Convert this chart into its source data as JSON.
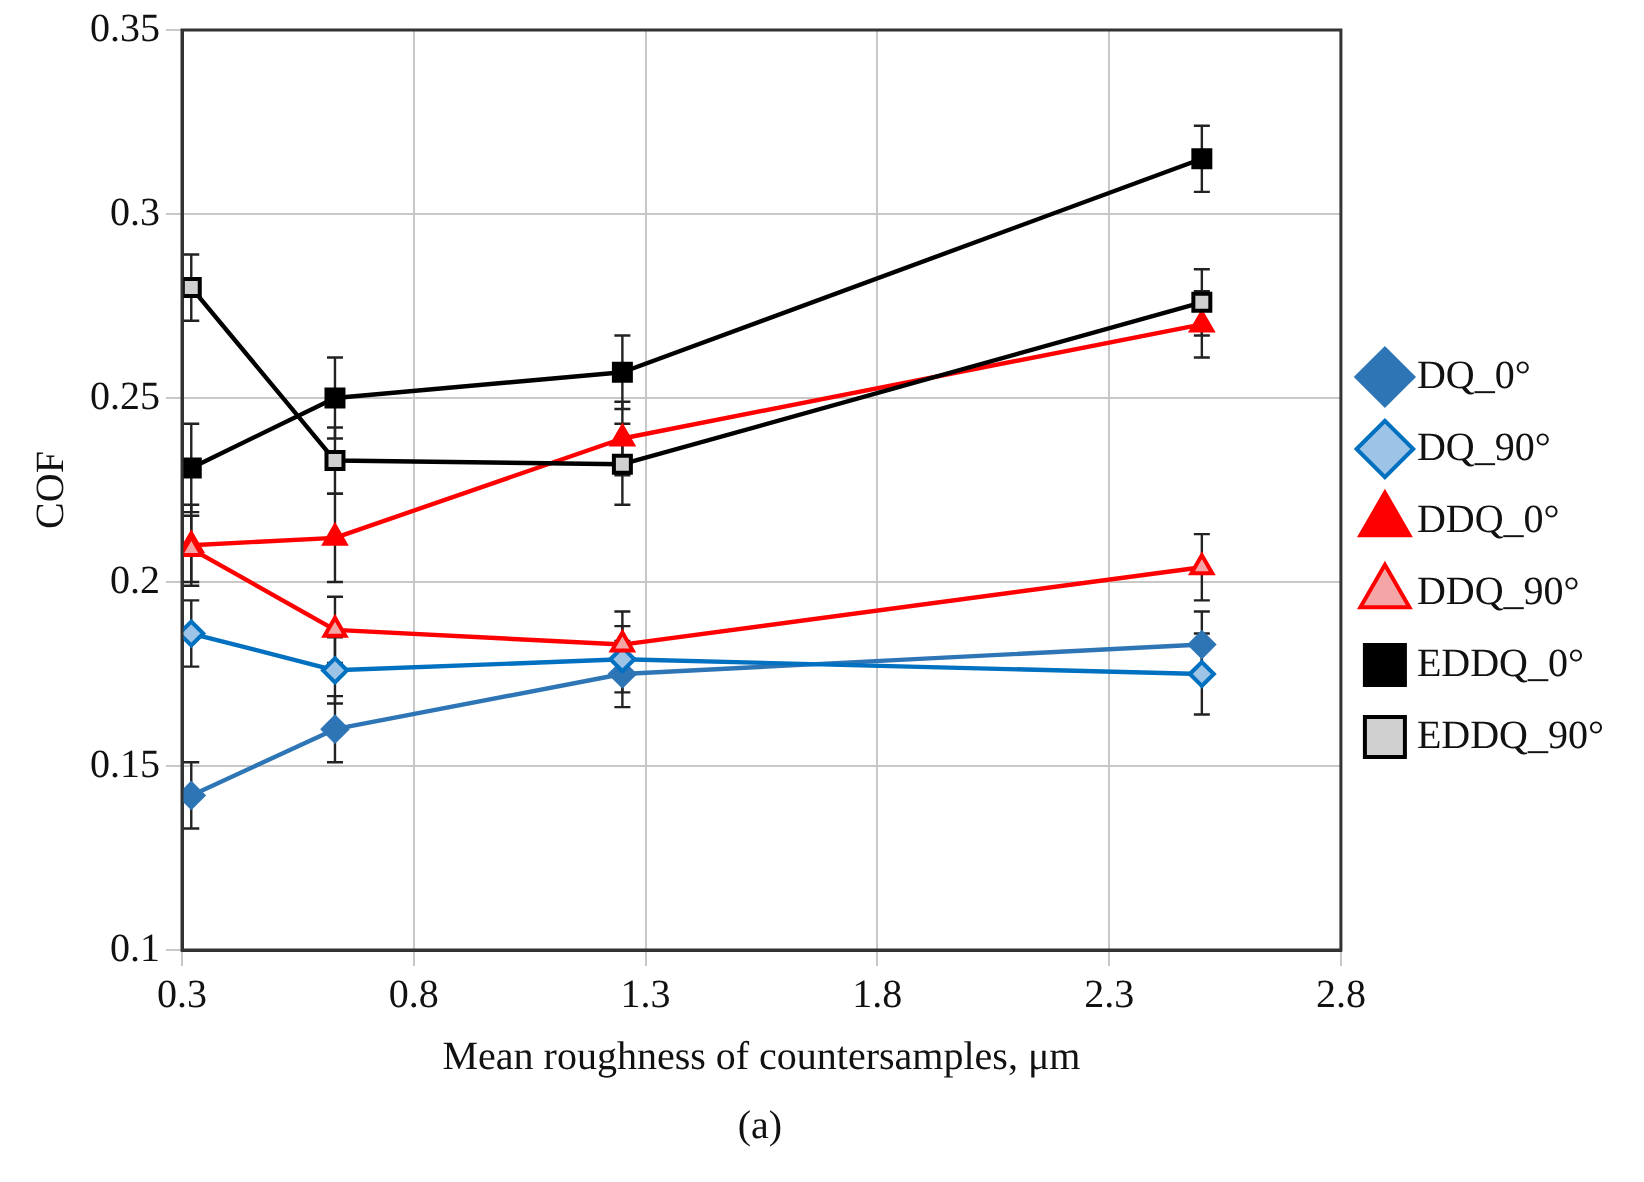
{
  "chart_data": {
    "type": "line",
    "xlabel": "Mean roughness of countersamples, μm",
    "ylabel": "COF",
    "x": [
      0.32,
      0.63,
      1.25,
      2.5
    ],
    "xlim": [
      0.3,
      2.8
    ],
    "xticks": [
      0.3,
      0.8,
      1.3,
      1.8,
      2.3,
      2.8
    ],
    "ylim": [
      0.1,
      0.35
    ],
    "yticks": [
      {
        "value": 0.1,
        "label": "0.1"
      },
      0.15,
      {
        "value": 0.2,
        "label": "0.2"
      },
      0.25,
      {
        "value": 0.3,
        "label": "0.3"
      },
      0.35
    ],
    "grid": true,
    "legend": "right",
    "annotations": [
      "(a)"
    ],
    "series": [
      {
        "name": "DQ_0°",
        "color": "#2e75b6",
        "marker": "diamond",
        "colors": [
          "#2e75b6",
          "#2e75b6",
          "#2e75b6",
          "#2e75b6"
        ],
        "values": [
          0.142,
          0.16,
          0.175,
          0.183
        ],
        "errors": [
          0.009,
          0.009,
          0.009,
          0.009
        ]
      },
      {
        "name": "DQ_90°",
        "color": "#0070c0",
        "marker": "diamond",
        "colors": [
          "#9dc3e6",
          "#9dc3e6",
          "#9dc3e6",
          "#9dc3e6"
        ],
        "values": [
          0.186,
          0.176,
          0.179,
          0.175
        ],
        "errors": [
          0.009,
          0.009,
          0.009,
          0.011
        ]
      },
      {
        "name": "DDQ_0°",
        "color": "#ff0000",
        "marker": "triangle",
        "colors": [
          "#ff0000",
          "#ff0000",
          "#ff0000",
          "#ff0000"
        ],
        "values": [
          0.21,
          0.212,
          0.239,
          0.27
        ],
        "errors": [
          0.011,
          0.012,
          0.01,
          0.009
        ]
      },
      {
        "name": "DDQ_90°",
        "color": "#ff0000",
        "marker": "triangle",
        "colors": [
          "#f4a6a6",
          "#f4a6a6",
          "#f4a6a6",
          "#f4a6a6"
        ],
        "values": [
          0.209,
          0.187,
          0.183,
          0.204
        ],
        "errors": [
          0.009,
          0.009,
          0.009,
          0.009
        ]
      },
      {
        "name": "EDDQ_0°",
        "color": "#000000",
        "marker": "square",
        "colors": [
          "#000000",
          "#000000",
          "#000000",
          "#000000"
        ],
        "values": [
          0.231,
          0.25,
          0.257,
          0.315
        ],
        "errors": [
          0.012,
          0.011,
          0.01,
          0.009
        ]
      },
      {
        "name": "EDDQ_90°",
        "color": "#000000",
        "marker": "square",
        "colors": [
          "#d0d0d0",
          "#d0d0d0",
          "#d0d0d0",
          "#d0d0d0"
        ],
        "values": [
          0.28,
          0.233,
          0.232,
          0.276
        ],
        "errors": [
          0.009,
          0.009,
          0.011,
          0.009
        ]
      }
    ]
  }
}
